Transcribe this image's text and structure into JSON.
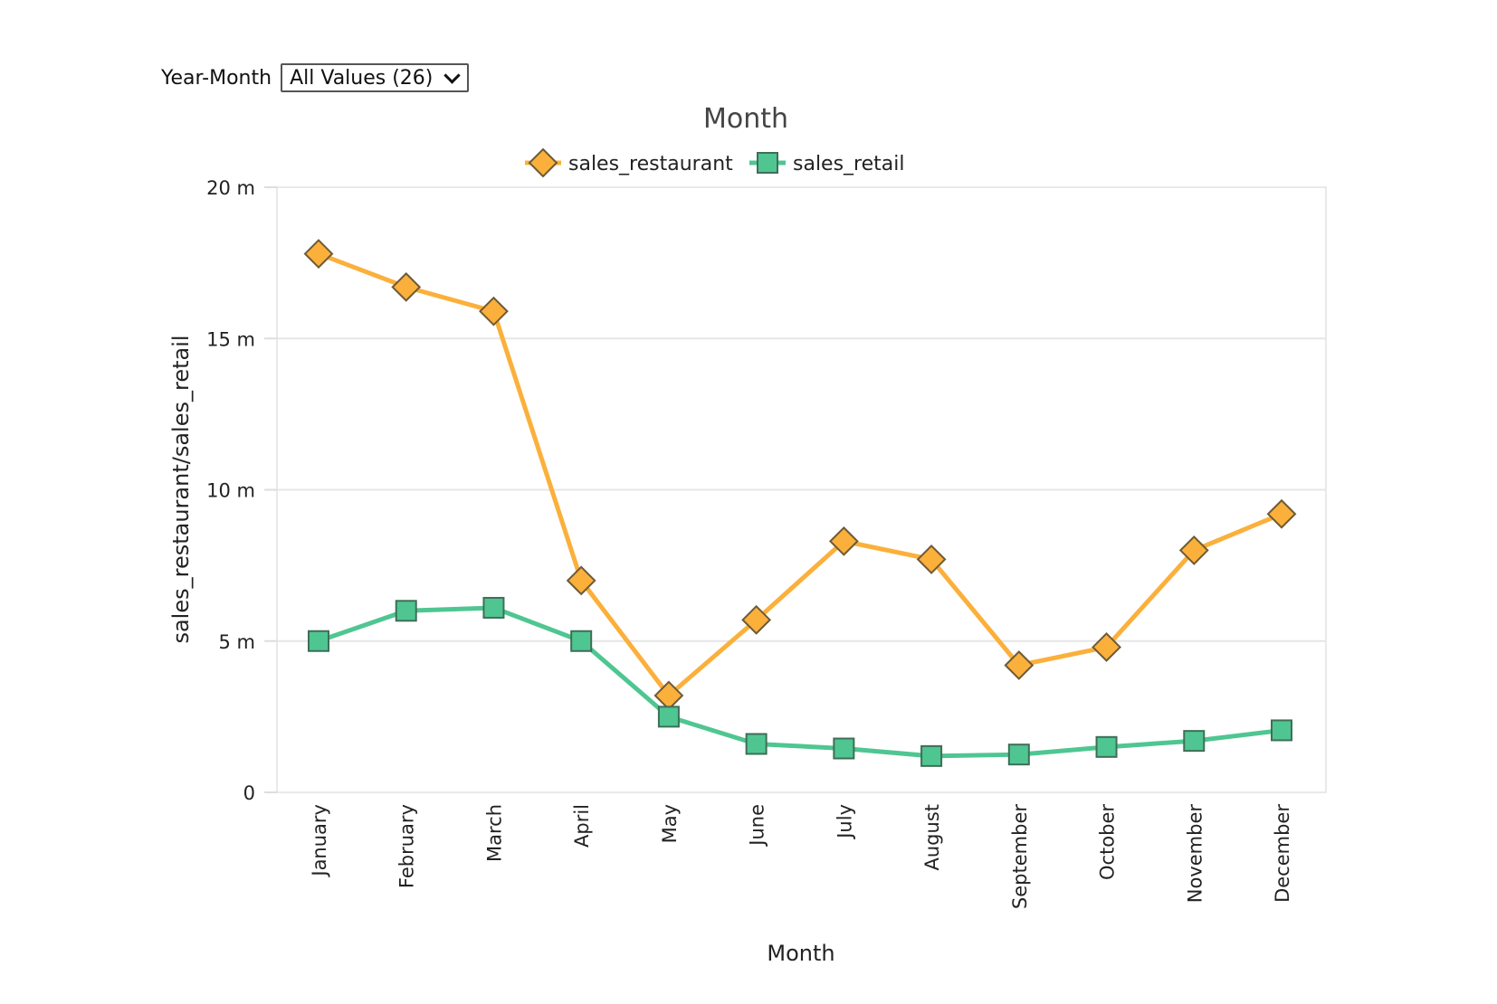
{
  "filter": {
    "label": "Year-Month",
    "selected": "All Values (26)"
  },
  "chart_data": {
    "type": "line",
    "title": "Month",
    "xlabel": "Month",
    "ylabel": "sales_restaurant/sales_retail",
    "ylim": [
      0,
      20000000
    ],
    "yticks": [
      {
        "value": 0,
        "label": "0"
      },
      {
        "value": 5000000,
        "label": "5 m"
      },
      {
        "value": 10000000,
        "label": "10 m"
      },
      {
        "value": 15000000,
        "label": "15 m"
      },
      {
        "value": 20000000,
        "label": "20 m"
      }
    ],
    "grid": true,
    "legend": "top-center",
    "categories": [
      "January",
      "February",
      "March",
      "April",
      "May",
      "June",
      "July",
      "August",
      "September",
      "October",
      "November",
      "December"
    ],
    "series": [
      {
        "name": "sales_restaurant",
        "color": "#FBB03B",
        "marker": "diamond",
        "values": [
          17800000,
          16700000,
          15900000,
          7000000,
          3200000,
          5700000,
          8300000,
          7700000,
          4200000,
          4800000,
          8000000,
          9200000
        ]
      },
      {
        "name": "sales_retail",
        "color": "#4FC691",
        "marker": "square",
        "values": [
          5000000,
          6000000,
          6100000,
          5000000,
          2500000,
          1600000,
          1450000,
          1200000,
          1250000,
          1500000,
          1700000,
          2050000
        ]
      }
    ]
  }
}
